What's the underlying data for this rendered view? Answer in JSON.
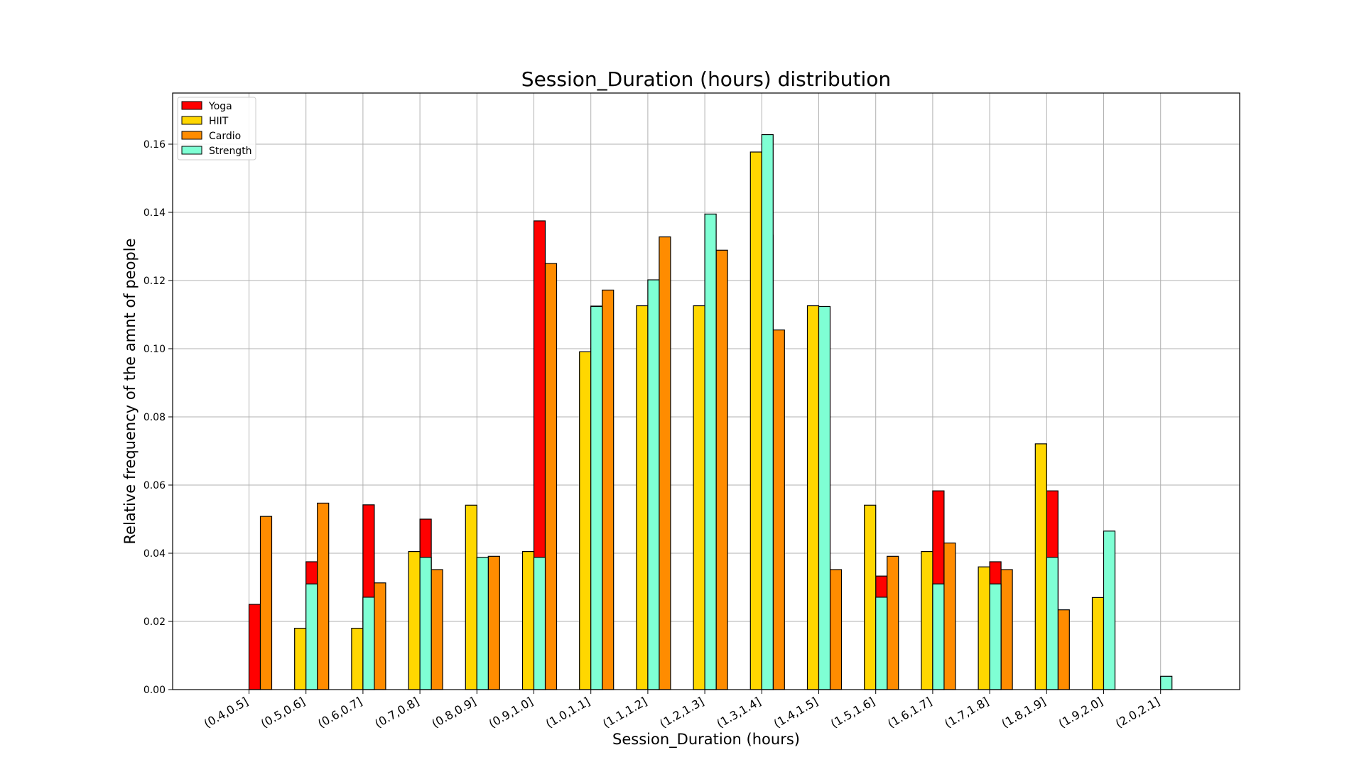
{
  "chart_data": {
    "type": "bar",
    "title": "Session_Duration (hours) distribution",
    "xlabel": "Session_Duration (hours)",
    "ylabel": "Relative frequency of the amnt of people",
    "categories": [
      "(0.4,0.5]",
      "(0.5,0.6]",
      "(0.6,0.7]",
      "(0.7,0.8]",
      "(0.8,0.9]",
      "(0.9,1.0]",
      "(1.0,1.1]",
      "(1.1,1.2]",
      "(1.2,1.3]",
      "(1.3,1.4]",
      "(1.4,1.5]",
      "(1.5,1.6]",
      "(1.6,1.7]",
      "(1.7,1.8]",
      "(1.8,1.9]",
      "(1.9,2.0]",
      "(2.0,2.1]"
    ],
    "series": [
      {
        "name": "Yoga",
        "color": "#ff0000",
        "offset": 0.5,
        "values": [
          0.025,
          0.0375,
          0.0542,
          0.05,
          0.0375,
          0.1375,
          0.1125,
          0.0833,
          0.1,
          0.1333,
          0.0375,
          0.0333,
          0.0583,
          0.0375,
          0.0583,
          0.0,
          0.0
        ]
      },
      {
        "name": "HIIT",
        "color": "#ffd700",
        "offset": -0.5,
        "values": [
          0.0,
          0.018,
          0.018,
          0.0405,
          0.0541,
          0.0405,
          0.0991,
          0.1126,
          0.1126,
          0.1577,
          0.1126,
          0.0541,
          0.0405,
          0.036,
          0.0721,
          0.027,
          0.0
        ]
      },
      {
        "name": "Cardio",
        "color": "#ff8c00",
        "offset": 1.5,
        "values": [
          0.0508,
          0.0547,
          0.0313,
          0.0352,
          0.0391,
          0.125,
          0.1172,
          0.1328,
          0.1289,
          0.1055,
          0.0352,
          0.0391,
          0.043,
          0.0352,
          0.0234,
          0.0,
          0.0
        ]
      },
      {
        "name": "Strength",
        "color": "#7fffd4",
        "offset": 0.5,
        "values": [
          0.0,
          0.031,
          0.0271,
          0.0388,
          0.0388,
          0.0388,
          0.1124,
          0.1202,
          0.1395,
          0.1628,
          0.1124,
          0.0271,
          0.031,
          0.031,
          0.0388,
          0.0465,
          0.0039
        ]
      }
    ],
    "yticks": [
      "0.00",
      "0.02",
      "0.04",
      "0.06",
      "0.08",
      "0.10",
      "0.12",
      "0.14",
      "0.16"
    ],
    "ylim": [
      0,
      0.175
    ],
    "grid": true,
    "legend_position": "top-left"
  }
}
